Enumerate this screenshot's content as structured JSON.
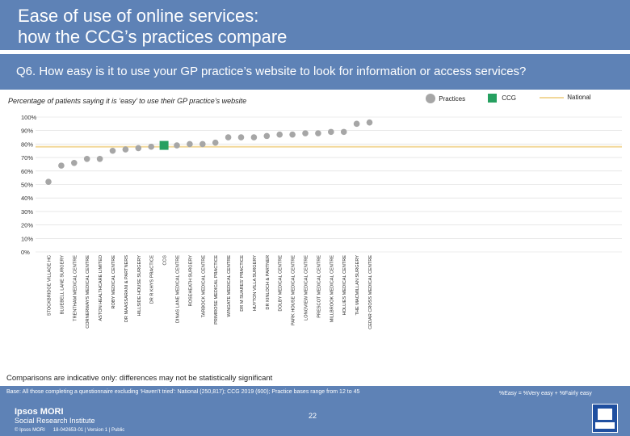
{
  "header": {
    "title_line1": "Ease of use of online services:",
    "title_line2": "how the CCG’s practices compare"
  },
  "question": "Q6. How easy is it to use your GP practice’s website to look for information or access services?",
  "subtitle": "Percentage of patients saying it is ‘easy’ to use their GP practice’s website",
  "legend": {
    "practices": "Practices",
    "ccg": "CCG",
    "national": "National"
  },
  "colors": {
    "band": "#5e82b6",
    "practice": "#a6a6a6",
    "ccg": "#26a060",
    "national": "#f2d89a",
    "grid": "#d9d9d9"
  },
  "comparison_note": "Comparisons are indicative only: differences may not be statistically significant",
  "base_note": "Base: All those completing a questionnaire excluding ‘Haven’t tried’: National (250,817); CCG 2019 (600); Practice bases range from 12 to 45",
  "easy_note": "%Easy = %Very easy + %Fairly easy",
  "page_number": "22",
  "footer": {
    "brand": "Ipsos MORI",
    "institute": "Social Research Institute",
    "copyright": "© Ipsos MORI",
    "job": "18-042653-01 | Version 1 | Public"
  },
  "chart_data": {
    "type": "scatter",
    "title": "",
    "ylabel": "",
    "ylim": [
      0,
      100
    ],
    "y_ticks": [
      "0%",
      "10%",
      "20%",
      "30%",
      "40%",
      "50%",
      "60%",
      "70%",
      "80%",
      "90%",
      "100%"
    ],
    "national_value": 78,
    "ccg_name": "CCG",
    "ccg_value": 79,
    "categories": [
      "STOCKBRIDGE VILLAGE HC",
      "BLUEBELL LANE SURGERY",
      "TRENTHAM MEDICAL CENTRE",
      "CORNERWAYS MEDICAL CENTRE",
      "ASTON HEALTHCARE LIMITED",
      "ROBY MEDICAL CENTRE",
      "DR MAASSARANI & PARTNERS",
      "HILLSIDE HOUSE SURGERY",
      "DR R KHYS PRACTICE",
      "CCG",
      "DINAS LANE MEDICAL CENTRE",
      "ROSEHEATH SURGERY",
      "TARBOCK MEDICAL CENTRE",
      "PRIMROSE MEDICAL PRACTICE",
      "WINGATE MEDICAL CENTRE",
      "DR M SUARES' PRACTICE",
      "HUYTON VILLA SURGERY",
      "DR KINLOCH & PARTNER",
      "DOLBY MEDICAL CENTRE",
      "PARK HOUSE MEDICAL CENTRE",
      "LONGVIEW MEDICAL CENTRE",
      "PRESCOT MEDICAL CENTRE",
      "MILLBROOK MEDICAL CENTRE",
      "HOLLIES MEDICAL CENTRE",
      "THE MACMILLAN SURGERY",
      "CEDAR CROSS MEDICAL CENTRE"
    ],
    "values": [
      52,
      64,
      66,
      69,
      69,
      75,
      76,
      77,
      78,
      79,
      79,
      80,
      80,
      81,
      85,
      85,
      85,
      86,
      87,
      87,
      88,
      88,
      89,
      89,
      95,
      96
    ]
  }
}
